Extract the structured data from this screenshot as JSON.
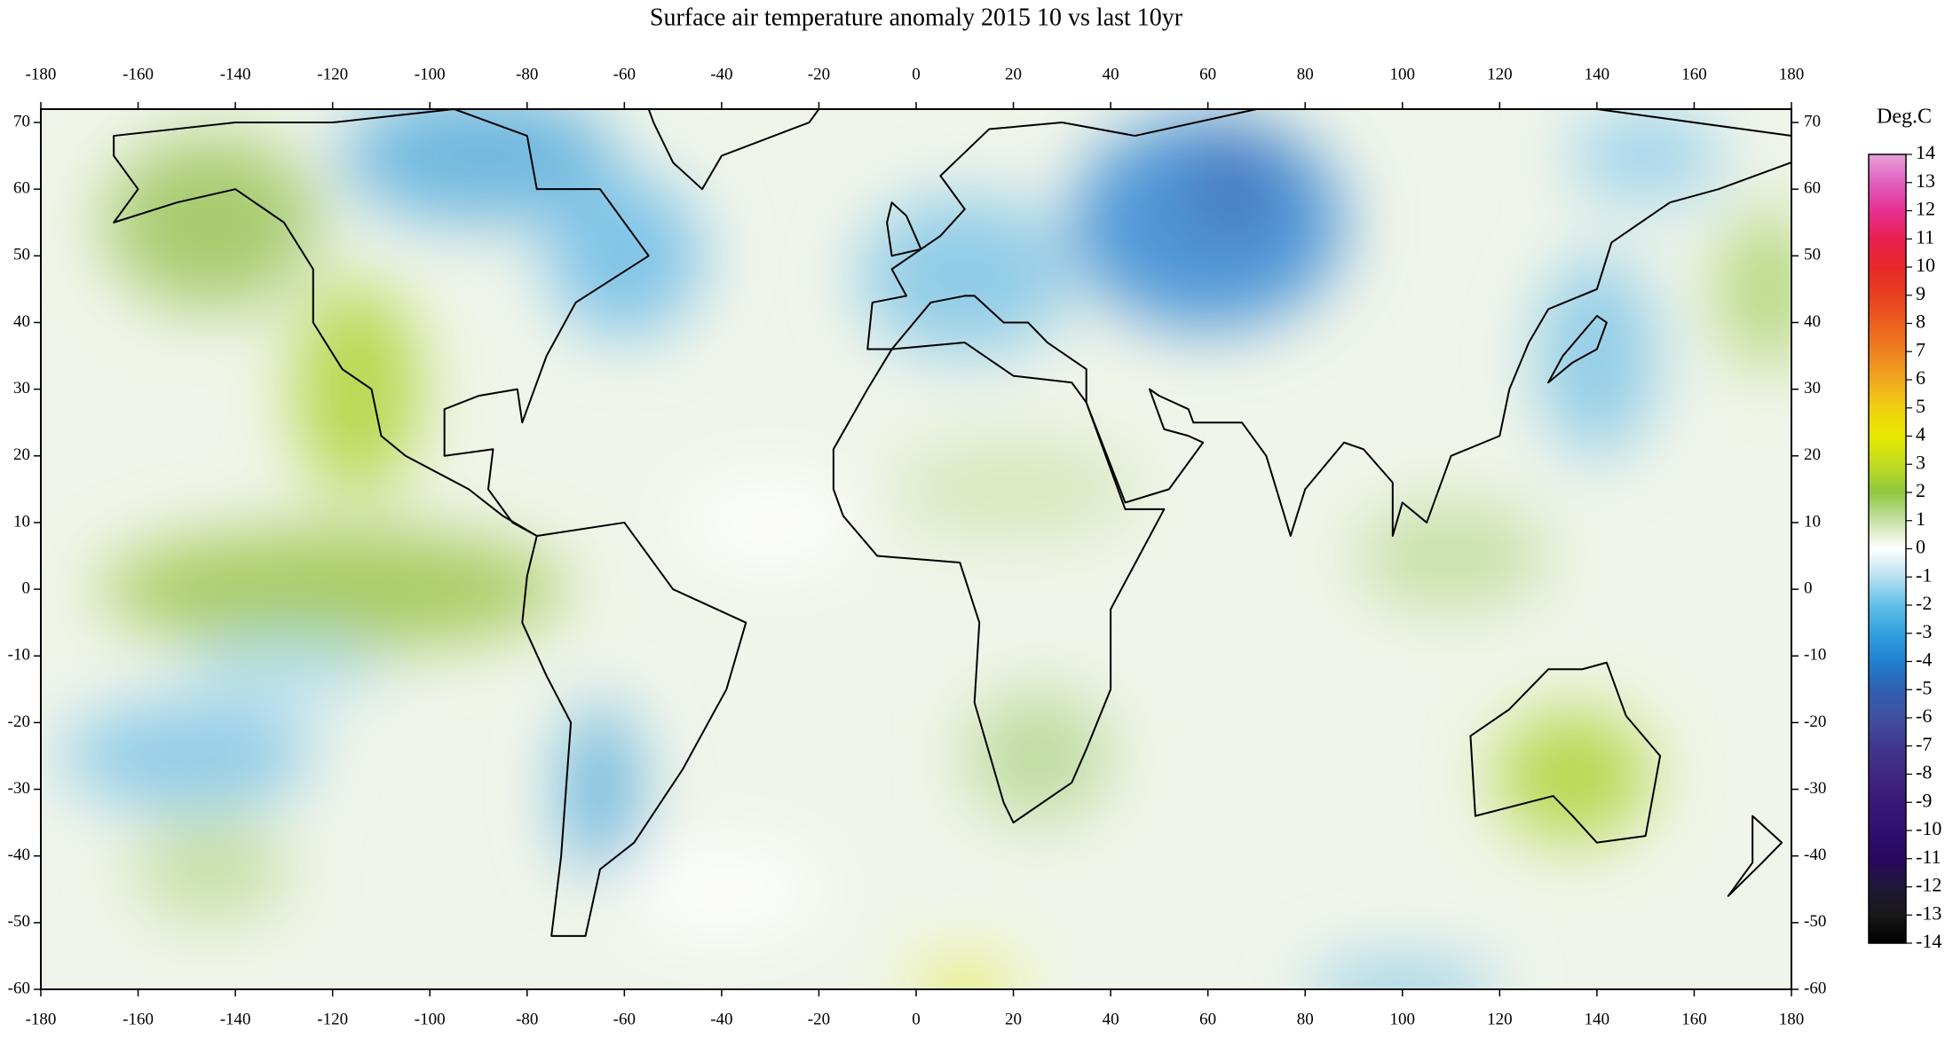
{
  "title": "Surface air temperature anomaly 2015 10 vs last 10yr",
  "map": {
    "xlim": [
      -180,
      180
    ],
    "ylim": [
      -60,
      72
    ],
    "xticks": [
      -180,
      -160,
      -140,
      -120,
      -100,
      -80,
      -60,
      -40,
      -20,
      0,
      20,
      40,
      60,
      80,
      100,
      120,
      140,
      160,
      180
    ],
    "yticks": [
      70,
      60,
      50,
      40,
      30,
      20,
      10,
      0,
      -10,
      -20,
      -30,
      -40,
      -50,
      -60
    ]
  },
  "colorbar": {
    "label": "Deg.C",
    "ticks": [
      14,
      13,
      12,
      11,
      10,
      9,
      8,
      7,
      6,
      5,
      4,
      3,
      2,
      1,
      0,
      -1,
      -2,
      -3,
      -4,
      -5,
      -6,
      -7,
      -8,
      -9,
      -10,
      -11,
      -12,
      -13,
      -14
    ],
    "colors": [
      "#e8a0d8",
      "#e060c0",
      "#e83090",
      "#e82050",
      "#e82828",
      "#e84020",
      "#ec6020",
      "#f08020",
      "#f0a820",
      "#f0d010",
      "#e8e800",
      "#c0dc20",
      "#90c840",
      "#c8e0a8",
      "#ffffff",
      "#b8e0f0",
      "#60c0e8",
      "#30a0e0",
      "#2080d0",
      "#3060b0",
      "#4050a0",
      "#403890",
      "#402880",
      "#381878",
      "#301070",
      "#280860",
      "#201838",
      "#181818",
      "#000000"
    ]
  }
}
